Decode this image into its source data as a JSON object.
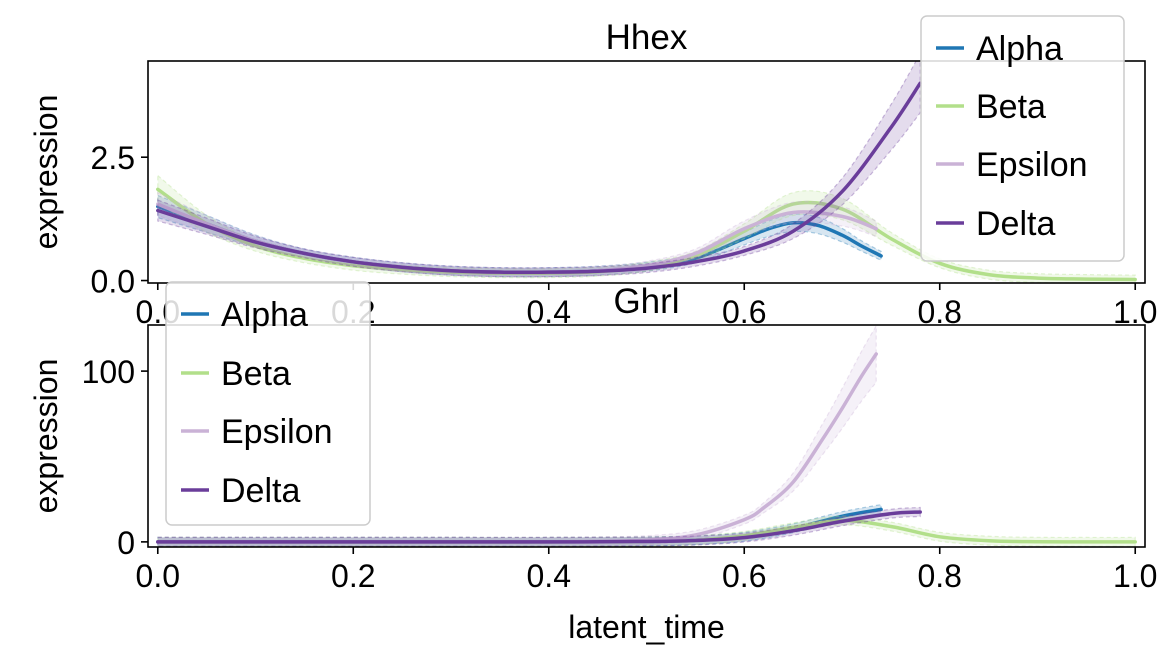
{
  "chart_data": [
    {
      "type": "line",
      "title": "Hhex",
      "xlabel": "",
      "ylabel": "expression",
      "xlim": [
        -0.01,
        1.01
      ],
      "ylim": [
        -0.05,
        4.45
      ],
      "xticks": [
        0.0,
        0.2,
        0.4,
        0.6,
        0.8,
        1.0
      ],
      "xtick_labels": [
        "0.0",
        "0.2",
        "0.4",
        "0.6",
        "0.8",
        "1.0"
      ],
      "yticks": [
        0.0,
        2.5
      ],
      "ytick_labels": [
        "0.0",
        "2.5"
      ],
      "grid": false,
      "legend_position": "top-right",
      "series": [
        {
          "name": "Alpha",
          "color": "#1f77b4",
          "x": [
            0.0,
            0.05,
            0.1,
            0.15,
            0.2,
            0.25,
            0.3,
            0.35,
            0.4,
            0.45,
            0.5,
            0.55,
            0.6,
            0.625,
            0.65,
            0.675,
            0.7,
            0.72,
            0.74
          ],
          "y": [
            1.5,
            1.15,
            0.8,
            0.55,
            0.38,
            0.27,
            0.2,
            0.17,
            0.17,
            0.2,
            0.28,
            0.45,
            0.85,
            1.05,
            1.17,
            1.12,
            0.92,
            0.7,
            0.5
          ]
        },
        {
          "name": "Beta",
          "color": "#b2df8a",
          "x": [
            0.0,
            0.05,
            0.1,
            0.15,
            0.2,
            0.25,
            0.3,
            0.35,
            0.4,
            0.45,
            0.5,
            0.55,
            0.6,
            0.65,
            0.7,
            0.75,
            0.8,
            0.85,
            0.9,
            0.95,
            1.0
          ],
          "y": [
            1.85,
            1.15,
            0.7,
            0.45,
            0.3,
            0.22,
            0.17,
            0.15,
            0.15,
            0.18,
            0.28,
            0.5,
            1.0,
            1.55,
            1.45,
            0.85,
            0.35,
            0.12,
            0.05,
            0.03,
            0.02
          ]
        },
        {
          "name": "Epsilon",
          "color": "#cab2d6",
          "x": [
            0.0,
            0.05,
            0.1,
            0.15,
            0.2,
            0.25,
            0.3,
            0.35,
            0.4,
            0.45,
            0.5,
            0.55,
            0.6,
            0.65,
            0.7,
            0.735
          ],
          "y": [
            1.55,
            1.15,
            0.8,
            0.55,
            0.38,
            0.27,
            0.2,
            0.17,
            0.17,
            0.2,
            0.3,
            0.55,
            1.05,
            1.38,
            1.3,
            1.05
          ]
        },
        {
          "name": "Delta",
          "color": "#6a3d9a",
          "x": [
            0.0,
            0.05,
            0.1,
            0.15,
            0.2,
            0.25,
            0.3,
            0.35,
            0.4,
            0.45,
            0.5,
            0.55,
            0.6,
            0.65,
            0.7,
            0.75,
            0.78
          ],
          "y": [
            1.42,
            1.1,
            0.78,
            0.55,
            0.38,
            0.27,
            0.2,
            0.17,
            0.17,
            0.19,
            0.25,
            0.38,
            0.6,
            1.0,
            1.8,
            3.1,
            4.0
          ]
        }
      ]
    },
    {
      "type": "line",
      "title": "Ghrl",
      "xlabel": "latent_time",
      "ylabel": "expression",
      "xlim": [
        -0.01,
        1.01
      ],
      "ylim": [
        -3,
        127
      ],
      "xticks": [
        0.0,
        0.2,
        0.4,
        0.6,
        0.8,
        1.0
      ],
      "xtick_labels": [
        "0.0",
        "0.2",
        "0.4",
        "0.6",
        "0.8",
        "1.0"
      ],
      "yticks": [
        0,
        100
      ],
      "ytick_labels": [
        "0",
        "100"
      ],
      "grid": false,
      "legend_position": "upper-left",
      "series": [
        {
          "name": "Alpha",
          "color": "#1f77b4",
          "x": [
            0.0,
            0.1,
            0.2,
            0.3,
            0.4,
            0.5,
            0.55,
            0.6,
            0.65,
            0.7,
            0.74
          ],
          "y": [
            0,
            0,
            0,
            0,
            0,
            0.3,
            1.0,
            3.0,
            8.0,
            15.0,
            19.0
          ]
        },
        {
          "name": "Beta",
          "color": "#b2df8a",
          "x": [
            0.0,
            0.1,
            0.2,
            0.3,
            0.4,
            0.5,
            0.55,
            0.6,
            0.65,
            0.7,
            0.75,
            0.8,
            0.85,
            0.9,
            0.95,
            1.0
          ],
          "y": [
            0,
            0,
            0,
            0,
            0,
            0.3,
            1.0,
            3.5,
            8.5,
            12.5,
            9.0,
            3.0,
            0.7,
            0.1,
            0,
            0
          ]
        },
        {
          "name": "Epsilon",
          "color": "#cab2d6",
          "x": [
            0.0,
            0.1,
            0.2,
            0.3,
            0.4,
            0.45,
            0.5,
            0.55,
            0.6,
            0.62,
            0.65,
            0.68,
            0.7,
            0.72,
            0.735
          ],
          "y": [
            0,
            0,
            0,
            0,
            0,
            0.3,
            1.0,
            4.0,
            13.0,
            20.0,
            35.0,
            60.0,
            78.0,
            97.0,
            110.0
          ]
        },
        {
          "name": "Delta",
          "color": "#6a3d9a",
          "x": [
            0.0,
            0.1,
            0.2,
            0.3,
            0.4,
            0.5,
            0.55,
            0.6,
            0.65,
            0.7,
            0.75,
            0.78
          ],
          "y": [
            0,
            0,
            0,
            0,
            0,
            0.2,
            0.8,
            2.5,
            6.5,
            12.0,
            16.5,
            17.5
          ]
        }
      ]
    }
  ]
}
